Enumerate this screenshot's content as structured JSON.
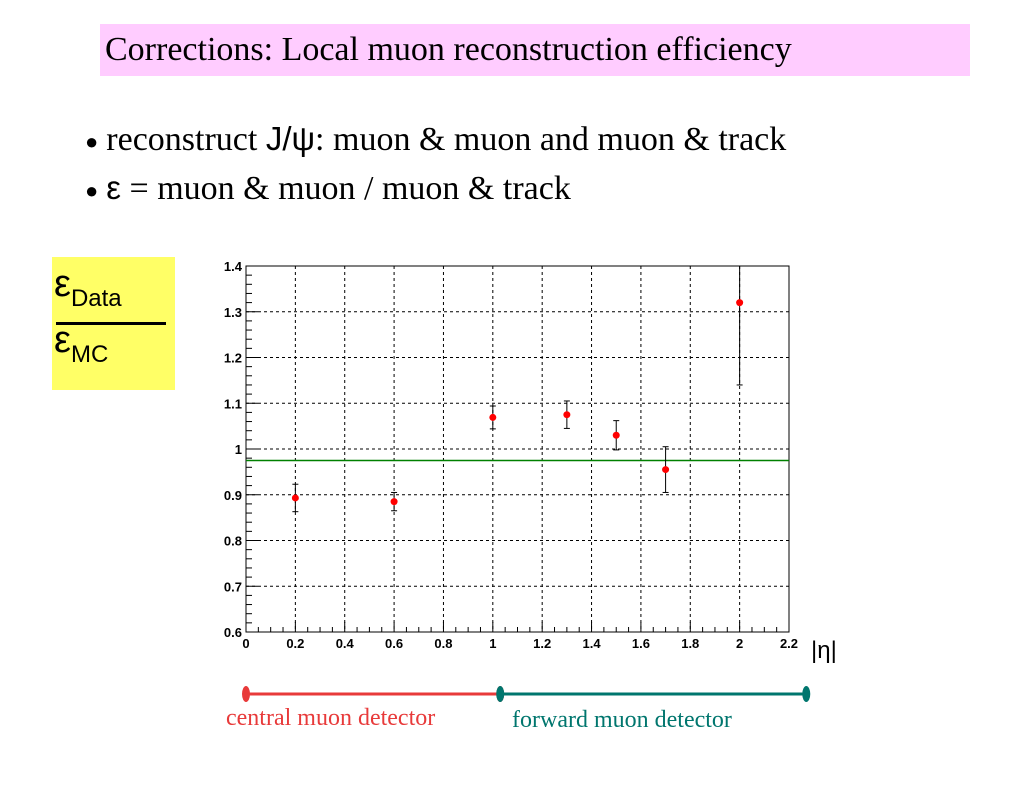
{
  "slide": {
    "title": "Corrections: Local  muon reconstruction efficiency",
    "bullets": [
      {
        "prefix": "reconstruct ",
        "symbol": "J/ψ",
        "text": ": muon & muon and muon & track"
      },
      {
        "prefix": "",
        "symbol": "ε",
        "text": " = muon & muon / muon & track"
      }
    ]
  },
  "ratio_label": {
    "symbol": "ε",
    "numerator_sub": "Data",
    "denominator_sub": "MC"
  },
  "chart_data": {
    "type": "scatter",
    "title": "",
    "xlabel": "|η|",
    "ylabel": "",
    "xlim": [
      0,
      2.2
    ],
    "ylim": [
      0.6,
      1.4
    ],
    "xticks": [
      0,
      0.2,
      0.4,
      0.6,
      0.8,
      1,
      1.2,
      1.4,
      1.6,
      1.8,
      2,
      2.2
    ],
    "xtick_labels": [
      "0",
      "0.2",
      "0.4",
      "0.6",
      "0.8",
      "1",
      "1.2",
      "1.4",
      "1.6",
      "1.8",
      "2",
      "2.2"
    ],
    "yticks": [
      0.6,
      0.7,
      0.8,
      0.9,
      1.0,
      1.1,
      1.2,
      1.3,
      1.4
    ],
    "ytick_labels": [
      "0.6",
      "0.7",
      "0.8",
      "0.9",
      "1",
      "1.1",
      "1.2",
      "1.3",
      "1.4"
    ],
    "grid": true,
    "points": [
      {
        "x": 0.2,
        "y": 0.893,
        "err": 0.03
      },
      {
        "x": 0.6,
        "y": 0.885,
        "err": 0.02
      },
      {
        "x": 1.0,
        "y": 1.069,
        "err": 0.025
      },
      {
        "x": 1.3,
        "y": 1.075,
        "err": 0.03
      },
      {
        "x": 1.5,
        "y": 1.03,
        "err": 0.032
      },
      {
        "x": 1.7,
        "y": 0.955,
        "err": 0.05
      },
      {
        "x": 2.0,
        "y": 1.32,
        "err": 0.18
      }
    ],
    "fit_line": {
      "y": 0.975,
      "color": "#008000"
    },
    "marker_color": "#ff0000"
  },
  "detector_regions": [
    {
      "label": "central muon detector",
      "x_start": 0,
      "x_end": 1.03,
      "color": "#e83a3a"
    },
    {
      "label": "forward muon detector",
      "x_start": 1.03,
      "x_end": 2.27,
      "color": "#00766e"
    }
  ]
}
